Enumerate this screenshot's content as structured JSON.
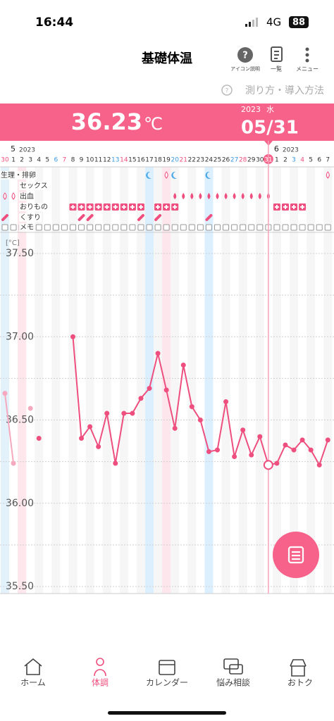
{
  "status_bar": {
    "time": "16:44",
    "network": "4G",
    "battery": "88"
  },
  "header": {
    "title": "基礎体温",
    "icons": [
      "アイコン説明",
      "一覧",
      "メニュー"
    ],
    "link": "測り方・導入方法"
  },
  "banner": {
    "temperature": "36.23",
    "unit": "℃",
    "year": "2023",
    "weekday": "水",
    "date": "05/31"
  },
  "chart_data": {
    "type": "line",
    "categories": [
      "30",
      "1",
      "2",
      "3",
      "4",
      "5",
      "6",
      "7",
      "8",
      "9",
      "10",
      "11",
      "12",
      "13",
      "14",
      "15",
      "16",
      "17",
      "18",
      "19",
      "20",
      "21",
      "22",
      "23",
      "24",
      "25",
      "26",
      "27",
      "28",
      "29",
      "30",
      "31",
      "1",
      "2",
      "3",
      "4",
      "5",
      "6",
      "7"
    ],
    "month_labels": [
      {
        "month": "5",
        "year": "2023"
      },
      {
        "month": "6",
        "year": "2023"
      }
    ],
    "row_labels": [
      "生理・排卵",
      "セックス",
      "出血",
      "おりもの",
      "くすり",
      "メモ"
    ],
    "y_unit": "[°C]",
    "ylim": [
      35.5,
      37.5
    ],
    "yticks": [
      {
        "value": 37.5,
        "label": "37.50"
      },
      {
        "value": 37.0,
        "label": "37.00"
      },
      {
        "value": 36.5,
        "label": "36.50"
      },
      {
        "value": 36.0,
        "label": "36.00"
      },
      {
        "value": 35.5,
        "label": "35.50"
      }
    ],
    "grid_yticks": [
      37.25,
      36.75,
      36.25,
      35.75
    ],
    "series": [
      {
        "color": "#f5a9be",
        "values": [
          36.66,
          36.24,
          null,
          36.57,
          null,
          null,
          null,
          null,
          null,
          null,
          null,
          null,
          null,
          null,
          null,
          null,
          null,
          null,
          null,
          null,
          null,
          null,
          null,
          null,
          null,
          null,
          null,
          null,
          null,
          null,
          null,
          null,
          null,
          null,
          null,
          null,
          null,
          null,
          null
        ]
      },
      {
        "color": "#ee4f7e",
        "values": [
          null,
          null,
          null,
          null,
          36.39,
          null,
          null,
          null,
          37.0,
          36.39,
          36.46,
          36.34,
          36.54,
          36.24,
          36.54,
          36.54,
          36.63,
          36.69,
          36.9,
          36.68,
          36.45,
          36.83,
          36.58,
          36.5,
          36.31,
          36.32,
          36.61,
          36.28,
          36.44,
          36.29,
          36.4,
          36.23,
          36.24,
          36.35,
          36.32,
          36.38,
          36.32,
          36.23,
          36.38
        ]
      }
    ]
  },
  "nav": [
    "ホーム",
    "体調",
    "カレンダー",
    "悩み相談",
    "おトク"
  ]
}
